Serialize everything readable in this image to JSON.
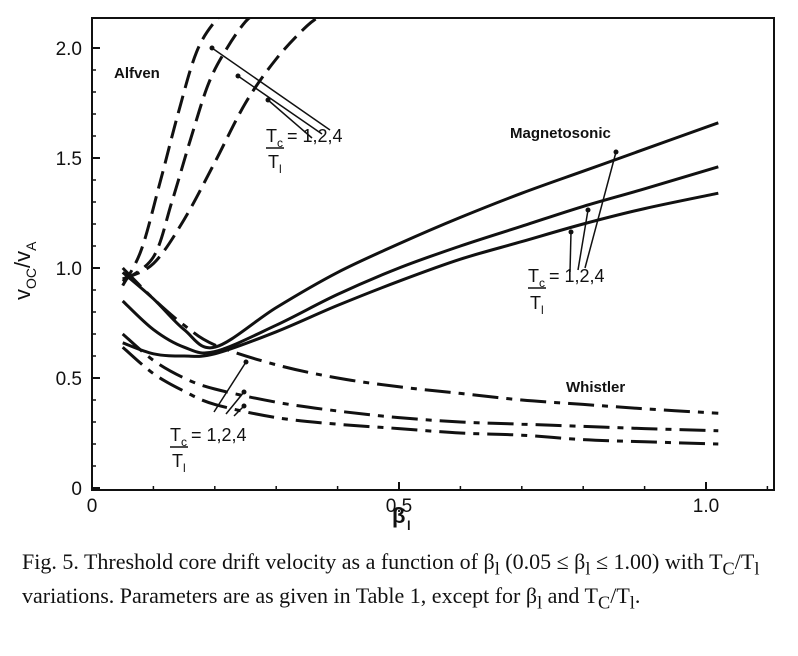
{
  "chart_data": {
    "type": "line",
    "xlabel": "β_l",
    "ylabel": "v_OC/v_A",
    "xlim": [
      0,
      1.1
    ],
    "ylim": [
      0,
      2.1
    ],
    "xticks": [
      0,
      0.5,
      1.0
    ],
    "xtick_labels": [
      "0",
      "0.5",
      "1.0"
    ],
    "yticks": [
      0,
      0.5,
      1.0,
      1.5,
      2.0
    ],
    "ytick_labels": [
      "0",
      "0.5",
      "1.0",
      "1.5",
      "2.0"
    ],
    "grid": false,
    "series": [
      {
        "family": "Alfven",
        "style": "dashed",
        "x": [
          0.05,
          0.1,
          0.15,
          0.2,
          0.25,
          0.3,
          0.35,
          0.38
        ],
        "y": [
          0.95,
          1.02,
          1.22,
          1.48,
          1.75,
          1.95,
          2.1,
          2.16
        ]
      },
      {
        "family": "Alfven",
        "style": "dashed",
        "x": [
          0.05,
          0.1,
          0.13,
          0.16,
          0.19,
          0.22,
          0.25,
          0.27
        ],
        "y": [
          0.94,
          1.05,
          1.3,
          1.58,
          1.84,
          2.0,
          2.12,
          2.16
        ]
      },
      {
        "family": "Alfven",
        "style": "dashed",
        "x": [
          0.05,
          0.08,
          0.11,
          0.14,
          0.17,
          0.2,
          0.22
        ],
        "y": [
          0.92,
          1.08,
          1.38,
          1.7,
          1.98,
          2.12,
          2.16
        ]
      },
      {
        "family": "Magnetosonic",
        "style": "solid",
        "x": [
          0.05,
          0.1,
          0.15,
          0.2,
          0.3,
          0.4,
          0.5,
          0.6,
          0.7,
          0.8,
          0.9,
          1.02
        ],
        "y": [
          0.98,
          0.86,
          0.72,
          0.64,
          0.82,
          0.98,
          1.11,
          1.23,
          1.34,
          1.44,
          1.54,
          1.66
        ]
      },
      {
        "family": "Magnetosonic",
        "style": "solid",
        "x": [
          0.05,
          0.1,
          0.15,
          0.2,
          0.3,
          0.4,
          0.5,
          0.6,
          0.7,
          0.8,
          0.9,
          1.02
        ],
        "y": [
          0.85,
          0.72,
          0.64,
          0.62,
          0.74,
          0.88,
          1.0,
          1.1,
          1.19,
          1.28,
          1.36,
          1.46
        ]
      },
      {
        "family": "Magnetosonic",
        "style": "solid",
        "x": [
          0.05,
          0.1,
          0.15,
          0.2,
          0.3,
          0.4,
          0.5,
          0.6,
          0.7,
          0.8,
          0.9,
          1.02
        ],
        "y": [
          0.66,
          0.61,
          0.6,
          0.61,
          0.71,
          0.83,
          0.94,
          1.04,
          1.12,
          1.2,
          1.27,
          1.34
        ]
      },
      {
        "family": "Whistler",
        "style": "dash-dot",
        "x": [
          0.05,
          0.1,
          0.15,
          0.2,
          0.3,
          0.4,
          0.5,
          0.6,
          0.7,
          0.8,
          0.9,
          1.02
        ],
        "y": [
          1.0,
          0.86,
          0.74,
          0.65,
          0.56,
          0.5,
          0.46,
          0.43,
          0.4,
          0.38,
          0.36,
          0.34
        ]
      },
      {
        "family": "Whistler",
        "style": "dash-dot",
        "x": [
          0.05,
          0.1,
          0.15,
          0.2,
          0.3,
          0.4,
          0.5,
          0.6,
          0.7,
          0.8,
          0.9,
          1.02
        ],
        "y": [
          0.7,
          0.58,
          0.5,
          0.45,
          0.39,
          0.35,
          0.32,
          0.3,
          0.29,
          0.28,
          0.27,
          0.26
        ]
      },
      {
        "family": "Whistler",
        "style": "dash-dot",
        "x": [
          0.05,
          0.1,
          0.15,
          0.2,
          0.3,
          0.4,
          0.5,
          0.6,
          0.7,
          0.8,
          0.9,
          1.02
        ],
        "y": [
          0.64,
          0.52,
          0.44,
          0.38,
          0.32,
          0.29,
          0.27,
          0.25,
          0.24,
          0.22,
          0.21,
          0.2
        ]
      }
    ],
    "annotations": [
      {
        "text": "Alfven",
        "near": "top-left"
      },
      {
        "text": "Magnetosonic",
        "near": "upper-right"
      },
      {
        "text": "Whistler",
        "near": "lower-right"
      },
      {
        "text": "T_c/T_l = 1,2,4",
        "count": 3
      }
    ]
  },
  "figure": {
    "xlabel": "β",
    "xlabel_sub": "l",
    "ylabel_main": "v",
    "ylabel_sub1": "OC",
    "ylabel_sep": "/v",
    "ylabel_sub2": "A",
    "label_alfven": "Alfven",
    "label_magnetosonic": "Magnetosonic",
    "label_whistler": "Whistler",
    "tc_numer": "T",
    "tc_numer_sub": "c",
    "tc_denom": "T",
    "tc_denom_sub": "l",
    "tc_values": "= 1,2,4"
  },
  "caption": {
    "text": "Fig. 5.   Threshold core drift velocity as a function of β",
    "sub1": "l",
    "text2": " (0.05 ≤ β",
    "sub2": "l",
    "text3": " ≤ 1.00) with T",
    "sub3": "C",
    "text4": "/T",
    "sub4": "l",
    "text5": " variations. Parameters are as given in Table 1, except for β",
    "sub5": "l",
    "text6": " and T",
    "sub6": "C",
    "text7": "/T",
    "sub7": "l",
    "text8": "."
  }
}
